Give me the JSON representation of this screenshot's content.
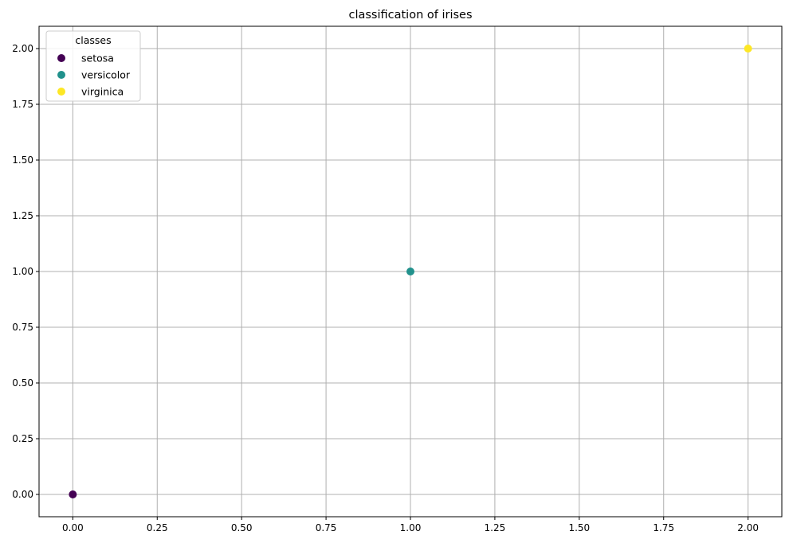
{
  "chart_data": {
    "type": "scatter",
    "title": "classification of irises",
    "xlabel": "",
    "ylabel": "",
    "xlim": [
      -0.1,
      2.1
    ],
    "ylim": [
      -0.1,
      2.1
    ],
    "xticks": [
      "0.00",
      "0.25",
      "0.50",
      "0.75",
      "1.00",
      "1.25",
      "1.50",
      "1.75",
      "2.00"
    ],
    "yticks": [
      "0.00",
      "0.25",
      "0.50",
      "0.75",
      "1.00",
      "1.25",
      "1.50",
      "1.75",
      "2.00"
    ],
    "grid": true,
    "legend": {
      "title": "classes",
      "placement": "top-left",
      "entries": [
        "setosa",
        "versicolor",
        "virginica"
      ]
    },
    "series": [
      {
        "name": "setosa",
        "color": "#440154",
        "points": [
          {
            "x": 0,
            "y": 0
          }
        ]
      },
      {
        "name": "versicolor",
        "color": "#21918c",
        "points": [
          {
            "x": 1,
            "y": 1
          }
        ]
      },
      {
        "name": "virginica",
        "color": "#fde725",
        "points": [
          {
            "x": 2,
            "y": 2
          }
        ]
      }
    ]
  }
}
